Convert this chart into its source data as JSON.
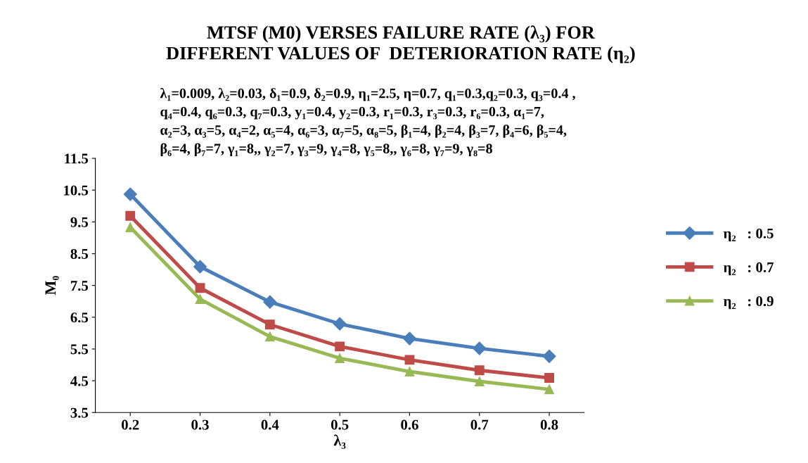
{
  "chart_data": {
    "type": "line",
    "title": "MTSF (M0) VERSES FAILURE RATE (λ₃) FOR\nDIFFERENT VALUES OF  DETERIORATION RATE (η₂)",
    "annotations": [
      "λ₁=0.009, λ₂=0.03, δ₁=0.9, δ₂=0.9, η₁=2.5, η=0.7, q₁=0.3,q₂=0.3, q₃=0.4 ,\nq₄=0.4, q₆=0.3, q₇=0.3, y₁=0.4, y₂=0.3, r₁=0.3, r₃=0.3, r₆=0.3, α₁=7,\nα₂=3, α₃=5, α₄=2, α₅=4, α₆=3, α₇=5, α₈=5, β₁=4, β₂=4, β₃=7, β₄=6, β₅=4,\nβ₆=4, β₇=7, γ₁=8,, γ₂=7, γ₃=9, γ₄=8, γ₅=8,, γ₆=8, γ₇=9, γ₈=8"
    ],
    "xlabel": "λ₃",
    "ylabel": "M₀",
    "categories": [
      "0.2",
      "0.3",
      "0.4",
      "0.5",
      "0.6",
      "0.7",
      "0.8"
    ],
    "series": [
      {
        "name": "η₂   : 0.5",
        "color": "#4a7ebb",
        "marker": "diamond",
        "values": [
          10.37,
          8.09,
          6.98,
          6.29,
          5.83,
          5.52,
          5.27
        ]
      },
      {
        "name": "η₂   : 0.7",
        "color": "#be4b48",
        "marker": "square",
        "values": [
          9.69,
          7.42,
          6.27,
          5.58,
          5.16,
          4.83,
          4.59
        ]
      },
      {
        "name": "η₂   : 0.9",
        "color": "#98b954",
        "marker": "triangle",
        "values": [
          9.33,
          7.07,
          5.89,
          5.21,
          4.79,
          4.48,
          4.23
        ]
      }
    ],
    "ylim": [
      3.5,
      11.5
    ],
    "yticks": [
      3.5,
      4.5,
      5.5,
      6.5,
      7.5,
      8.5,
      9.5,
      10.5,
      11.5
    ],
    "grid": false,
    "legend": "right",
    "line_style": "solid"
  }
}
